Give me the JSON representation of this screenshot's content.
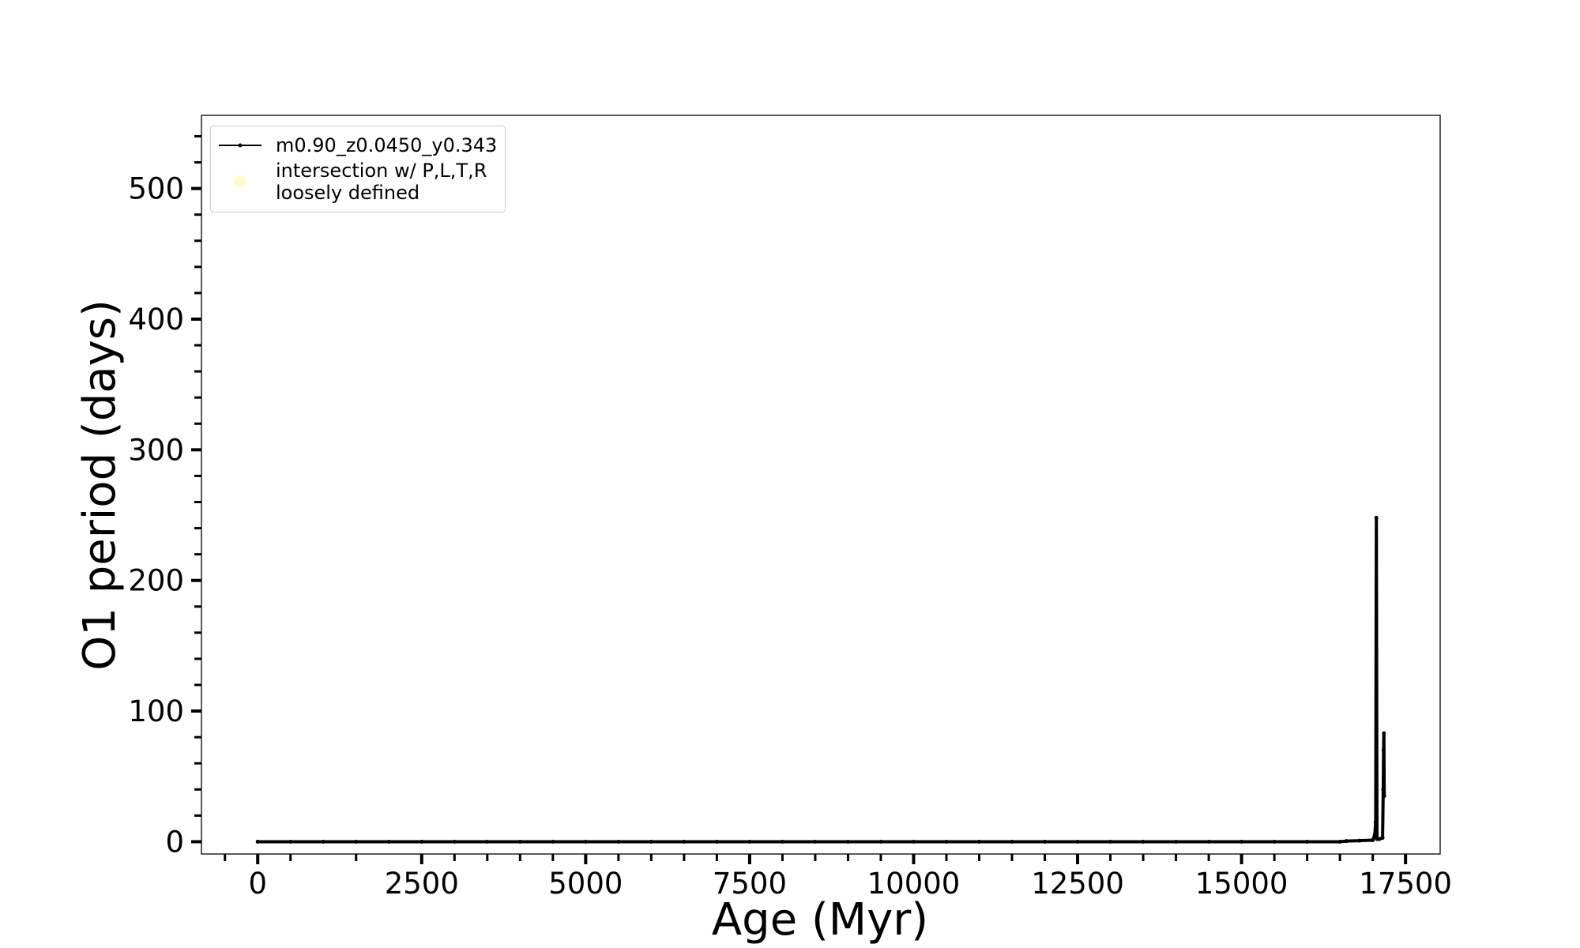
{
  "chart_data": {
    "type": "line",
    "xlabel": "Age (Myr)",
    "ylabel": "O1 period (days)",
    "xlim": [
      -858,
      18028
    ],
    "ylim": [
      -9.4,
      556
    ],
    "xticks": [
      0,
      2500,
      5000,
      7500,
      10000,
      12500,
      15000,
      17500
    ],
    "xminorticks": [
      -500,
      500,
      1500,
      3000,
      3500,
      4000,
      4500,
      5500,
      6000,
      6500,
      7000,
      8000,
      8500,
      9000,
      9500,
      10500,
      11000,
      11500,
      12000,
      13000,
      13500,
      14000,
      14500,
      15500,
      16000,
      16500,
      17000
    ],
    "yticks": [
      0,
      100,
      200,
      300,
      400,
      500
    ],
    "yminorticks": [
      20,
      40,
      60,
      80,
      120,
      140,
      160,
      180,
      220,
      240,
      260,
      280,
      320,
      340,
      360,
      380,
      420,
      440,
      460,
      480,
      520,
      540
    ],
    "legend": "upper left",
    "x": [
      0,
      500,
      1000,
      1500,
      2000,
      2500,
      3000,
      3500,
      4000,
      4500,
      5000,
      5500,
      6000,
      6500,
      7000,
      7500,
      8000,
      8500,
      9000,
      9500,
      10000,
      10500,
      11000,
      11500,
      12000,
      12500,
      13000,
      13500,
      14000,
      14500,
      15000,
      15500,
      16000,
      16500,
      16600,
      16800,
      17000,
      17030,
      17045,
      17055,
      17065,
      17100,
      17150,
      17160,
      17165,
      17170,
      17175
    ],
    "series": [
      {
        "name": "m0.90_z0.0450_y0.343",
        "color": "#000000",
        "values": [
          0,
          0,
          0,
          0,
          0,
          0,
          0,
          0,
          0,
          0,
          0,
          0,
          0,
          0,
          0,
          0,
          0,
          0,
          0,
          0,
          0,
          0,
          0,
          0,
          0,
          0,
          0,
          0,
          0,
          0,
          0,
          0,
          0,
          0,
          0.5,
          0.8,
          1.2,
          5,
          15,
          248,
          2,
          2,
          3,
          40,
          70,
          83,
          35
        ]
      },
      {
        "name": "intersection w/ P,L,T,R\nloosely defined",
        "color": "#fffacd",
        "marker": "scatter",
        "x": [],
        "values": []
      }
    ]
  }
}
